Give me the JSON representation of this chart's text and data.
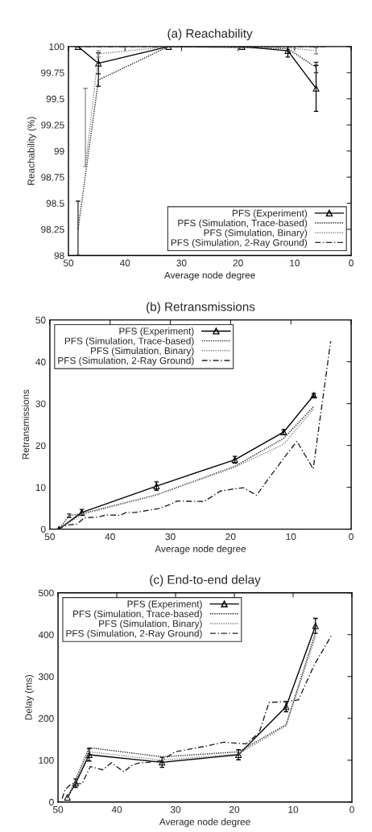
{
  "chart_data": [
    {
      "type": "line",
      "title": "(a) Reachability",
      "xlabel": "Average node degree",
      "ylabel": "Reachability (%)",
      "xlim": [
        50,
        0
      ],
      "xticks": [
        50,
        40,
        30,
        20,
        10,
        0
      ],
      "ylim": [
        98,
        100
      ],
      "yticks": [
        98,
        98.25,
        98.5,
        98.75,
        99,
        99.25,
        99.5,
        99.75,
        100
      ],
      "grid": false,
      "legend": "bottom right",
      "series": [
        {
          "name": "PFS (Experiment)",
          "color": "#000000",
          "line_style": "solid",
          "marker": "triangle",
          "x": [
            48.3,
            44.7,
            32.3,
            19.3,
            11.2,
            6.2
          ],
          "values": [
            100,
            99.84,
            100,
            100,
            99.96,
            99.6
          ],
          "errors": [
            null,
            0.1,
            null,
            null,
            0.06,
            0.22
          ]
        },
        {
          "name": "PFS (Simulation, Trace-based)",
          "color": "#222222",
          "line_style": "dotted",
          "marker": "none",
          "x": [
            48.3,
            44.7,
            32.3,
            19.3,
            11.2,
            6.2
          ],
          "values": [
            98.25,
            99.68,
            100,
            99.99,
            99.98,
            99.8
          ],
          "errors": [
            [
              98,
              98.52
            ],
            0.06,
            null,
            null,
            null,
            0.05
          ]
        },
        {
          "name": "PFS (Simulation, Binary)",
          "color": "#888888",
          "line_style": "dotted",
          "marker": "none",
          "x": [
            47,
            44.7,
            32.3,
            19.3,
            11.2,
            6.2
          ],
          "values": [
            98.85,
            99.93,
            100,
            100,
            99.99,
            99.96
          ],
          "errors": [
            [
              98.85,
              99.6
            ],
            0.03,
            null,
            null,
            null,
            0.03
          ]
        },
        {
          "name": "PFS (Simulation, 2-Ray Ground)",
          "color": "#222222",
          "line_style": "dashed",
          "marker": "none",
          "x": [
            49,
            44.7,
            32.3,
            19.3,
            11.2,
            6.2,
            4
          ],
          "values": [
            100,
            100,
            100,
            100,
            100,
            100,
            100
          ]
        }
      ]
    },
    {
      "type": "line",
      "title": "(b) Retransmissions",
      "xlabel": "Average node degree",
      "ylabel": "Retransmissions",
      "xlim": [
        50,
        0
      ],
      "xticks": [
        50,
        40,
        30,
        20,
        10,
        0
      ],
      "ylim": [
        0,
        50
      ],
      "yticks": [
        0,
        10,
        20,
        30,
        40,
        50
      ],
      "grid": false,
      "legend": "top left",
      "series": [
        {
          "name": "PFS (Experiment)",
          "color": "#000000",
          "line_style": "solid",
          "marker": "triangle",
          "x": [
            48.5,
            44.7,
            32.3,
            19.3,
            11.2,
            6.2
          ],
          "values": [
            0,
            4,
            10.3,
            16.6,
            23.2,
            32
          ],
          "errors": [
            null,
            0.7,
            1,
            0.8,
            0.6,
            0.4
          ]
        },
        {
          "name": "PFS (Simulation, Trace-based)",
          "color": "#222222",
          "line_style": "dotted",
          "marker": "none",
          "x": [
            48.5,
            46.8,
            44.7,
            32.3,
            19.3,
            11.2,
            6.2
          ],
          "values": [
            0,
            3.2,
            3.7,
            8.2,
            15,
            21.7,
            29.3
          ],
          "errors": [
            null,
            0.4,
            null,
            null,
            null,
            null,
            null
          ]
        },
        {
          "name": "PFS (Simulation, Binary)",
          "color": "#888888",
          "line_style": "dotted",
          "marker": "none",
          "x": [
            48.5,
            44.7,
            32.3,
            19.3,
            11.2,
            6.2
          ],
          "values": [
            0,
            3.5,
            8.2,
            14.8,
            20.3,
            28.8
          ]
        },
        {
          "name": "PFS (Simulation, 2-Ray Ground)",
          "color": "#222222",
          "line_style": "dashed",
          "marker": "none",
          "x": [
            48.7,
            46.9,
            45.5,
            44.3,
            42,
            40.6,
            38.4,
            37.3,
            35.8,
            32,
            30.2,
            28.9,
            24.4,
            21.7,
            19.5,
            17.9,
            15.7,
            13.8,
            11,
            9,
            6.3,
            3.4
          ],
          "values": [
            0.1,
            1,
            1.2,
            2.7,
            2.9,
            3.4,
            3.3,
            4,
            4,
            4.9,
            5.8,
            6.7,
            6.6,
            9.1,
            9.6,
            9.9,
            8.1,
            11.9,
            17.3,
            21,
            14.4,
            44.9
          ]
        }
      ]
    },
    {
      "type": "line",
      "title": "(c) End-to-end delay",
      "xlabel": "Average node degree",
      "ylabel": "Delay (ms)",
      "xlim": [
        50,
        0
      ],
      "xticks": [
        50,
        40,
        30,
        20,
        10,
        0
      ],
      "ylim": [
        0,
        500
      ],
      "yticks": [
        0,
        100,
        200,
        300,
        400,
        500
      ],
      "grid": false,
      "legend": "top left",
      "series": [
        {
          "name": "PFS (Experiment)",
          "color": "#000000",
          "line_style": "solid",
          "marker": "triangle",
          "x": [
            48.4,
            47,
            44.7,
            32.3,
            19.3,
            11.2,
            6.2
          ],
          "values": [
            11,
            45,
            113,
            95,
            113,
            228,
            421
          ],
          "errors": [
            null,
            10,
            15,
            12,
            12,
            12,
            18
          ]
        },
        {
          "name": "PFS (Simulation, Trace-based)",
          "color": "#222222",
          "line_style": "dotted",
          "marker": "none",
          "x": [
            48.3,
            44.7,
            32.3,
            19.3,
            11.2,
            6.2
          ],
          "values": [
            12,
            130,
            108,
            120,
            185,
            405
          ]
        },
        {
          "name": "PFS (Simulation, Binary)",
          "color": "#888888",
          "line_style": "dotted",
          "marker": "none",
          "x": [
            48.3,
            44.7,
            32.3,
            19.3,
            11.2,
            6.2
          ],
          "values": [
            10,
            120,
            100,
            115,
            182,
            395
          ]
        },
        {
          "name": "PFS (Simulation, 2-Ray Ground)",
          "color": "#222222",
          "line_style": "dashed",
          "marker": "none",
          "x": [
            49.3,
            48.8,
            47.7,
            45.9,
            44.5,
            42.4,
            40.9,
            38.8,
            37.5,
            36.3,
            32.5,
            30.1,
            24.7,
            21.8,
            18,
            15.8,
            14.1,
            11.2,
            9.1,
            6.4,
            3.4
          ],
          "values": [
            8,
            30,
            44,
            44,
            85,
            77,
            94,
            72,
            87,
            93,
            98,
            120,
            134,
            143,
            139,
            165,
            238,
            240,
            244,
            328,
            400
          ]
        }
      ]
    }
  ]
}
